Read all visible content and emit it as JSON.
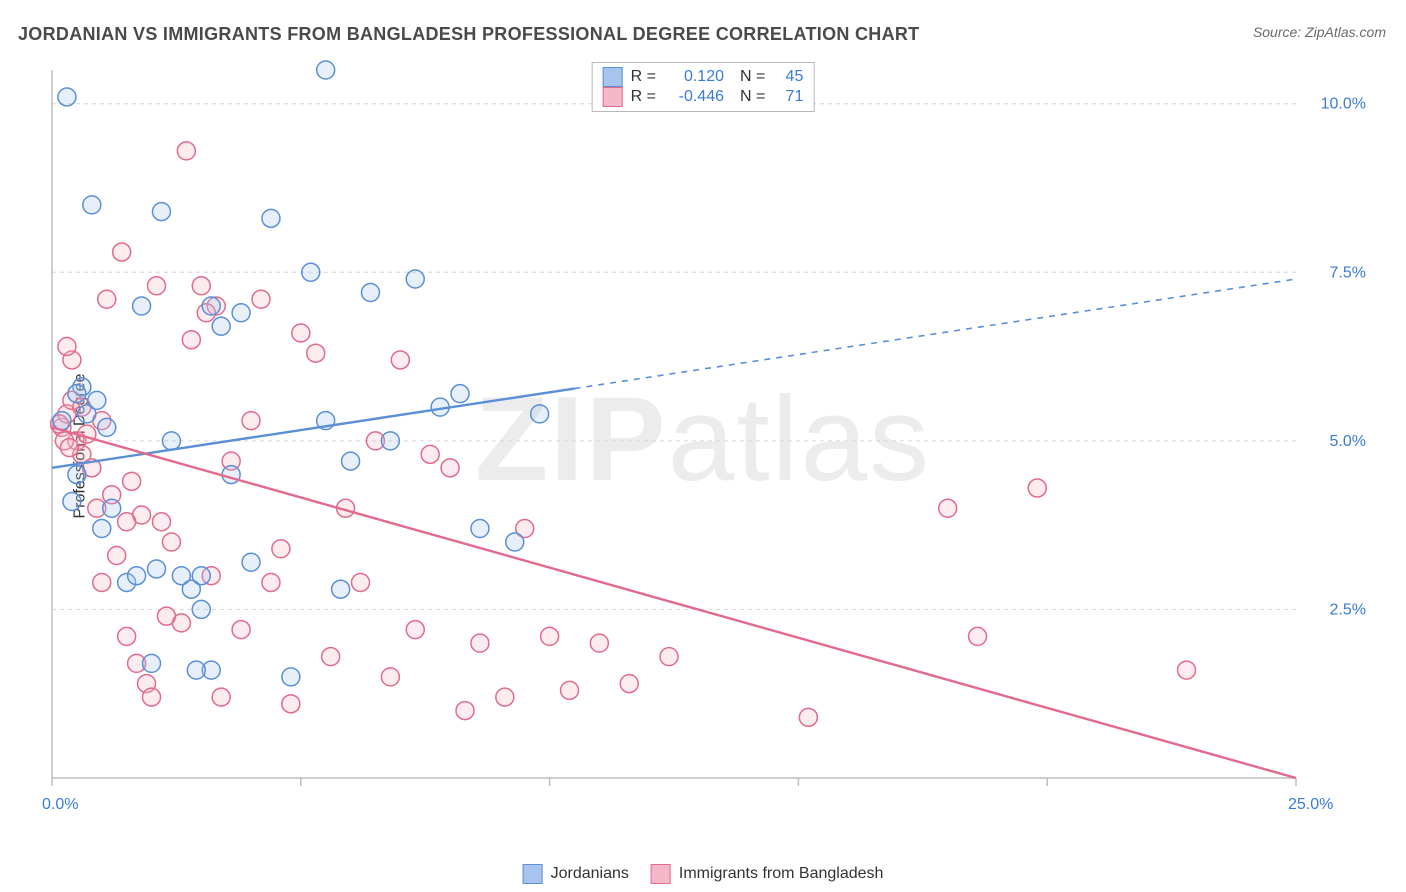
{
  "title": "JORDANIAN VS IMMIGRANTS FROM BANGLADESH PROFESSIONAL DEGREE CORRELATION CHART",
  "source": "Source: ZipAtlas.com",
  "ylabel": "Professional Degree",
  "watermark_bold": "ZIP",
  "watermark_rest": "atlas",
  "chart": {
    "type": "scatter",
    "xlim": [
      0,
      25
    ],
    "ylim": [
      0,
      10.5
    ],
    "x_ticks": [
      0,
      5,
      10,
      15,
      20,
      25
    ],
    "y_gridlines": [
      2.5,
      5.0,
      7.5,
      10.0
    ],
    "x_tick_labels_shown": {
      "0": "0.0%",
      "25": "25.0%"
    },
    "y_tick_labels": [
      "2.5%",
      "5.0%",
      "7.5%",
      "10.0%"
    ],
    "background_color": "#ffffff",
    "grid_color": "#d6d6d6",
    "grid_dash": "4,4",
    "axis_color": "#bfbfbf",
    "tick_color": "#bfbfbf",
    "label_color": "#3a7bd5",
    "label_fontsize": 16,
    "marker_radius": 9,
    "marker_stroke_width": 1.5,
    "marker_fill_opacity": 0.28,
    "line_width": 2.4,
    "series": [
      {
        "name": "Jordanians",
        "color_stroke": "#5b8fd6",
        "color_fill": "#a7c5ec",
        "R": "0.120",
        "N": "45",
        "trend": {
          "x1": 0,
          "y1": 4.6,
          "x2": 25,
          "y2": 7.4,
          "solid_until_x": 10.5
        },
        "points": [
          [
            0.2,
            5.3
          ],
          [
            0.3,
            10.1
          ],
          [
            0.4,
            4.1
          ],
          [
            0.5,
            4.5
          ],
          [
            0.6,
            5.8
          ],
          [
            0.7,
            5.4
          ],
          [
            0.8,
            8.5
          ],
          [
            0.9,
            5.6
          ],
          [
            1.0,
            3.7
          ],
          [
            1.1,
            5.2
          ],
          [
            1.2,
            4.0
          ],
          [
            5.5,
            10.5
          ],
          [
            1.5,
            2.9
          ],
          [
            1.7,
            3.0
          ],
          [
            1.8,
            7.0
          ],
          [
            2.0,
            1.7
          ],
          [
            2.1,
            3.1
          ],
          [
            2.2,
            8.4
          ],
          [
            2.4,
            5.0
          ],
          [
            2.6,
            3.0
          ],
          [
            2.8,
            2.8
          ],
          [
            3.0,
            3.0
          ],
          [
            3.2,
            1.6
          ],
          [
            3.4,
            6.7
          ],
          [
            3.6,
            4.5
          ],
          [
            4.0,
            3.2
          ],
          [
            4.4,
            8.3
          ],
          [
            4.8,
            1.5
          ],
          [
            5.2,
            7.5
          ],
          [
            5.5,
            5.3
          ],
          [
            5.8,
            2.8
          ],
          [
            6.0,
            4.7
          ],
          [
            6.4,
            7.2
          ],
          [
            6.8,
            5.0
          ],
          [
            7.3,
            7.4
          ],
          [
            7.8,
            5.5
          ],
          [
            8.2,
            5.7
          ],
          [
            8.6,
            3.7
          ],
          [
            9.3,
            3.5
          ],
          [
            9.8,
            5.4
          ],
          [
            3.2,
            7.0
          ],
          [
            2.9,
            1.6
          ],
          [
            3.8,
            6.9
          ],
          [
            0.5,
            5.7
          ],
          [
            3.0,
            2.5
          ]
        ]
      },
      {
        "name": "Immigrants from Bangladesh",
        "color_stroke": "#e26a8c",
        "color_fill": "#f4b9c9",
        "R": "-0.446",
        "N": "71",
        "trend": {
          "x1": 0,
          "y1": 5.2,
          "x2": 25,
          "y2": 0.0,
          "solid_until_x": 25
        },
        "points": [
          [
            0.2,
            5.2
          ],
          [
            0.3,
            5.4
          ],
          [
            0.4,
            6.2
          ],
          [
            0.5,
            5.0
          ],
          [
            0.6,
            4.8
          ],
          [
            0.7,
            5.1
          ],
          [
            0.8,
            4.6
          ],
          [
            0.9,
            4.0
          ],
          [
            1.0,
            5.3
          ],
          [
            1.1,
            7.1
          ],
          [
            1.2,
            4.2
          ],
          [
            1.3,
            3.3
          ],
          [
            1.4,
            7.8
          ],
          [
            1.5,
            2.1
          ],
          [
            1.6,
            4.4
          ],
          [
            1.7,
            1.7
          ],
          [
            1.8,
            3.9
          ],
          [
            1.9,
            1.4
          ],
          [
            2.0,
            1.2
          ],
          [
            2.1,
            7.3
          ],
          [
            2.2,
            3.8
          ],
          [
            2.4,
            3.5
          ],
          [
            2.6,
            2.3
          ],
          [
            2.7,
            9.3
          ],
          [
            2.8,
            6.5
          ],
          [
            3.0,
            7.3
          ],
          [
            3.2,
            3.0
          ],
          [
            3.3,
            7.0
          ],
          [
            3.4,
            1.2
          ],
          [
            3.6,
            4.7
          ],
          [
            3.8,
            2.2
          ],
          [
            4.0,
            5.3
          ],
          [
            4.2,
            7.1
          ],
          [
            4.4,
            2.9
          ],
          [
            4.6,
            3.4
          ],
          [
            4.8,
            1.1
          ],
          [
            5.0,
            6.6
          ],
          [
            5.3,
            6.3
          ],
          [
            5.6,
            1.8
          ],
          [
            5.9,
            4.0
          ],
          [
            6.2,
            2.9
          ],
          [
            6.5,
            5.0
          ],
          [
            6.8,
            1.5
          ],
          [
            7.0,
            6.2
          ],
          [
            7.3,
            2.2
          ],
          [
            7.6,
            4.8
          ],
          [
            8.0,
            4.6
          ],
          [
            8.3,
            1.0
          ],
          [
            8.6,
            2.0
          ],
          [
            9.1,
            1.2
          ],
          [
            9.5,
            3.7
          ],
          [
            10.0,
            2.1
          ],
          [
            10.4,
            1.3
          ],
          [
            11.0,
            2.0
          ],
          [
            11.6,
            1.4
          ],
          [
            12.4,
            1.8
          ],
          [
            15.2,
            0.9
          ],
          [
            18.0,
            4.0
          ],
          [
            18.6,
            2.1
          ],
          [
            19.8,
            4.3
          ],
          [
            22.8,
            1.6
          ],
          [
            0.3,
            6.4
          ],
          [
            0.4,
            5.6
          ],
          [
            0.6,
            5.5
          ],
          [
            1.0,
            2.9
          ],
          [
            1.5,
            3.8
          ],
          [
            2.3,
            2.4
          ],
          [
            3.1,
            6.9
          ],
          [
            0.15,
            5.25
          ],
          [
            0.25,
            5.0
          ],
          [
            0.35,
            4.9
          ]
        ]
      }
    ]
  },
  "legend_top": {
    "rows": [
      {
        "swatch_fill": "#a7c5ec",
        "swatch_stroke": "#5b8fd6",
        "r_label": "R =",
        "r_val": "0.120",
        "n_label": "N =",
        "n_val": "45"
      },
      {
        "swatch_fill": "#f4b9c9",
        "swatch_stroke": "#e26a8c",
        "r_label": "R =",
        "r_val": "-0.446",
        "n_label": "N =",
        "n_val": "71"
      }
    ]
  },
  "legend_bottom": {
    "items": [
      {
        "swatch_fill": "#a7c5ec",
        "swatch_stroke": "#5b8fd6",
        "label": "Jordanians"
      },
      {
        "swatch_fill": "#f4b9c9",
        "swatch_stroke": "#e26a8c",
        "label": "Immigrants from Bangladesh"
      }
    ]
  }
}
